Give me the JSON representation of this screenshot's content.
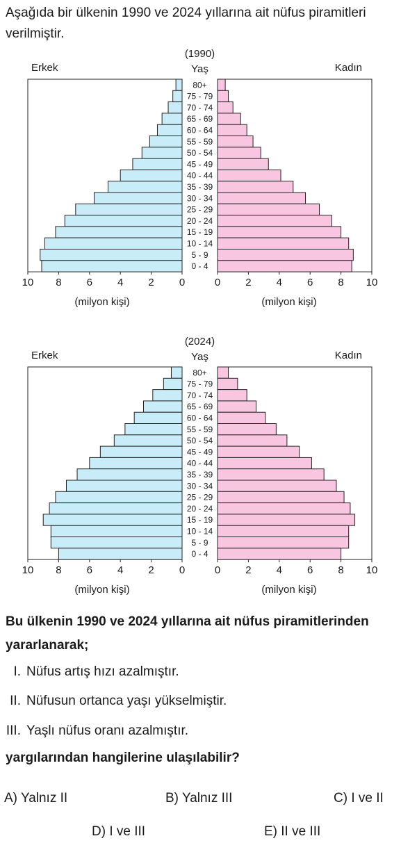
{
  "question": {
    "intro": "Aşağıda bir ülkenin 1990 ve 2024 yıllarına ait nüfus piramitleri verilmiştir.",
    "stem": "Bu ülkenin 1990 ve 2024 yıllarına ait nüfus piramitlerinden yararlanarak;",
    "statements": [
      {
        "num": "I.",
        "text": "Nüfus artış hızı azalmıştır."
      },
      {
        "num": "II.",
        "text": "Nüfusun ortanca yaşı yükselmiştir."
      },
      {
        "num": "III.",
        "text": "Yaşlı nüfus oranı azalmıştır."
      }
    ],
    "closing": "yargılarından hangilerine ulaşılabilir?",
    "options": [
      {
        "letter": "A)",
        "text": "Yalnız II"
      },
      {
        "letter": "B)",
        "text": "Yalnız III"
      },
      {
        "letter": "C)",
        "text": "I ve II"
      },
      {
        "letter": "D)",
        "text": "I ve III"
      },
      {
        "letter": "E)",
        "text": "II ve III"
      }
    ]
  },
  "colors": {
    "male": "#c8ecf8",
    "female": "#f9c6e2",
    "stroke": "#222222"
  },
  "chart_data": [
    {
      "type": "bar",
      "title": "(1990)",
      "age_label": "Yaş",
      "left_label": "Erkek",
      "right_label": "Kadın",
      "unit_label": "(milyon kişi)",
      "xlim": [
        0,
        10
      ],
      "ticks": [
        "10",
        "8",
        "6",
        "4",
        "2",
        "0"
      ],
      "right_ticks": [
        "0",
        "2",
        "4",
        "6",
        "8",
        "10"
      ],
      "categories": [
        "80+",
        "75 - 79",
        "70 - 74",
        "65 - 69",
        "60 - 64",
        "55 - 59",
        "50 - 54",
        "45 - 49",
        "40 - 44",
        "35 - 39",
        "30 - 34",
        "25 - 29",
        "20 - 24",
        "15 - 19",
        "10 - 14",
        "5 - 9",
        "0 - 4"
      ],
      "series": [
        {
          "name": "Erkek",
          "values": [
            0.4,
            0.6,
            0.9,
            1.3,
            1.6,
            2.1,
            2.6,
            3.2,
            4.0,
            4.8,
            5.7,
            6.9,
            7.6,
            8.2,
            8.9,
            9.2,
            9.1
          ]
        },
        {
          "name": "Kadın",
          "values": [
            0.5,
            0.7,
            1.0,
            1.5,
            1.9,
            2.3,
            2.8,
            3.3,
            4.1,
            4.9,
            5.7,
            6.6,
            7.4,
            8.0,
            8.5,
            8.8,
            8.7
          ]
        }
      ]
    },
    {
      "type": "bar",
      "title": "(2024)",
      "age_label": "Yaş",
      "left_label": "Erkek",
      "right_label": "Kadın",
      "unit_label": "(milyon kişi)",
      "xlim": [
        0,
        10
      ],
      "ticks": [
        "10",
        "8",
        "6",
        "4",
        "2",
        "0"
      ],
      "right_ticks": [
        "0",
        "2",
        "4",
        "6",
        "8",
        "10"
      ],
      "categories": [
        "80+",
        "75 - 79",
        "70 - 74",
        "65 - 69",
        "60 - 64",
        "55 - 59",
        "50 - 54",
        "45 - 49",
        "40 - 44",
        "35 - 39",
        "30 - 34",
        "25 - 29",
        "20 - 24",
        "15 - 19",
        "10 - 14",
        "5 - 9",
        "0 - 4"
      ],
      "series": [
        {
          "name": "Erkek",
          "values": [
            0.7,
            1.2,
            1.9,
            2.5,
            3.1,
            3.7,
            4.4,
            5.3,
            6.0,
            6.8,
            7.5,
            8.2,
            8.6,
            9.0,
            8.5,
            8.5,
            8.0
          ]
        },
        {
          "name": "Kadın",
          "values": [
            0.7,
            1.3,
            1.9,
            2.5,
            3.1,
            3.8,
            4.5,
            5.3,
            6.1,
            6.9,
            7.7,
            8.2,
            8.6,
            8.9,
            8.5,
            8.5,
            8.0
          ]
        }
      ]
    }
  ]
}
